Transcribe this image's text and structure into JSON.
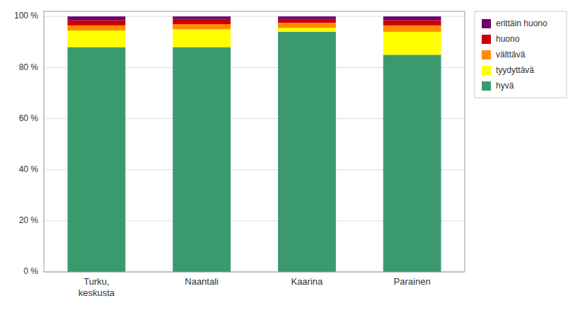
{
  "chart_data": {
    "type": "bar",
    "stacked": true,
    "categories": [
      "Turku,\nkeskusta",
      "Naantali",
      "Kaarina",
      "Parainen"
    ],
    "series": [
      {
        "name": "hyvä",
        "color": "#3a9a6e",
        "values": [
          88.0,
          88.0,
          94.0,
          85.0
        ]
      },
      {
        "name": "tyydyttävä",
        "color": "#ffff00",
        "values": [
          6.5,
          7.0,
          1.5,
          9.0
        ]
      },
      {
        "name": "välttävä",
        "color": "#ff8c00",
        "values": [
          2.0,
          2.0,
          2.0,
          2.5
        ]
      },
      {
        "name": "huono",
        "color": "#cc0000",
        "values": [
          2.0,
          2.0,
          1.5,
          2.0
        ]
      },
      {
        "name": "erittäin huono",
        "color": "#6b006b",
        "values": [
          1.5,
          1.0,
          1.0,
          1.5
        ]
      }
    ],
    "ylim": [
      0,
      102
    ],
    "yticks": [
      {
        "value": 0,
        "label": "0 %"
      },
      {
        "value": 20,
        "label": "20 %"
      },
      {
        "value": 40,
        "label": "40 %"
      },
      {
        "value": 60,
        "label": "60 %"
      },
      {
        "value": 80,
        "label": "80 %"
      },
      {
        "value": 100,
        "label": "100 %"
      }
    ],
    "grid": true,
    "legend": "right"
  }
}
